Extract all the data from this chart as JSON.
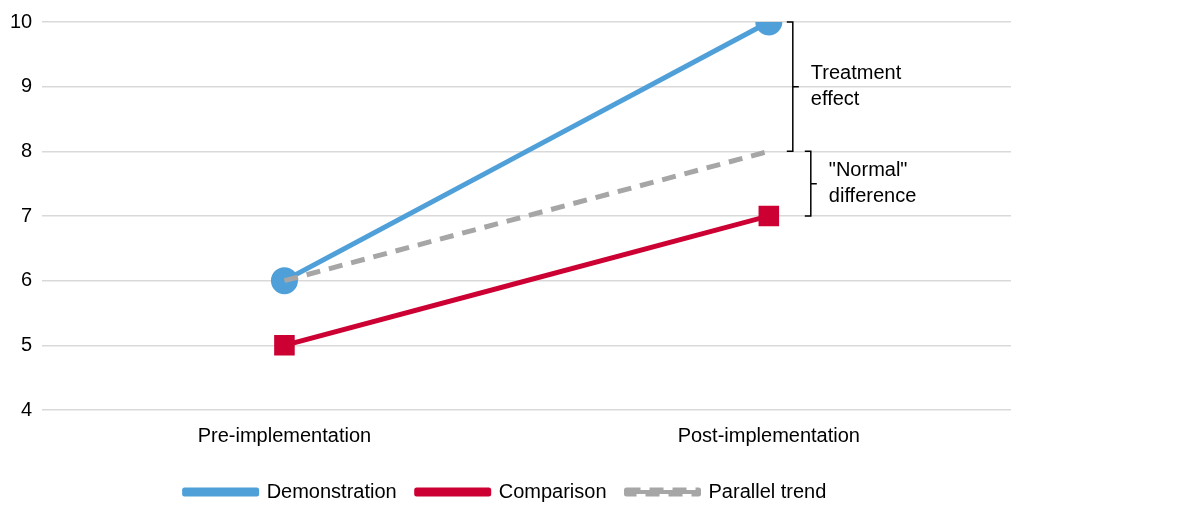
{
  "chart_data": {
    "type": "line",
    "categories": [
      "Pre-implementation",
      "Post-implementation"
    ],
    "series": [
      {
        "name": "Demonstration",
        "color": "#4f9fd9",
        "values": [
          6,
          10
        ],
        "marker": "circle",
        "line_style": "solid"
      },
      {
        "name": "Comparison",
        "color": "#cc0033",
        "values": [
          5,
          7
        ],
        "marker": "square",
        "line_style": "solid"
      },
      {
        "name": "Parallel trend",
        "color": "#a6a6a6",
        "values": [
          6,
          8
        ],
        "marker": "none",
        "line_style": "dashed"
      }
    ],
    "ylim": [
      4,
      10
    ],
    "yticks": [
      4,
      5,
      6,
      7,
      8,
      9,
      10
    ],
    "grid": "y",
    "legend": "bottom",
    "annotations": [
      "Treatment effect",
      "\"Normal\" difference"
    ]
  }
}
